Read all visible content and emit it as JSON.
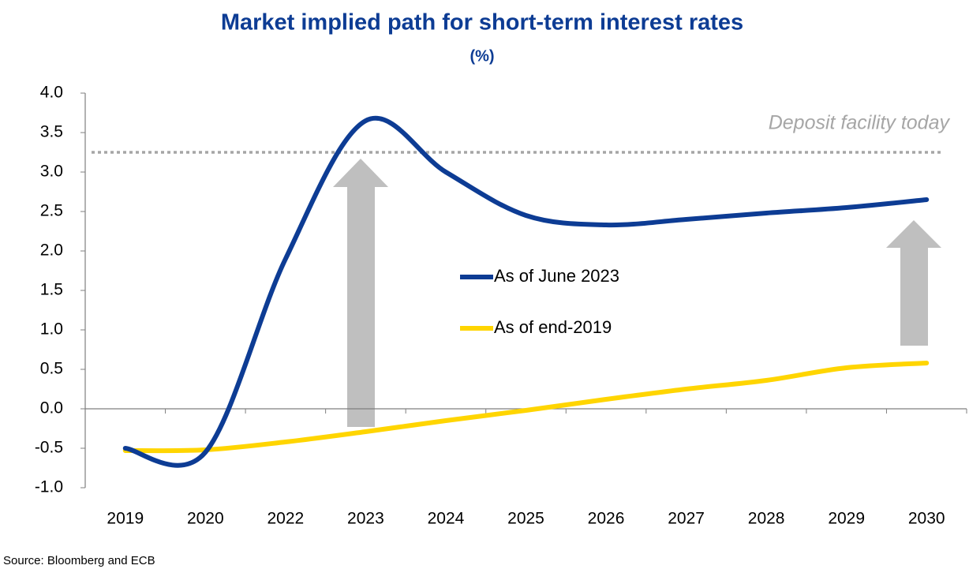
{
  "chart_data": {
    "type": "line",
    "title": "Market implied path for short-term interest rates",
    "subtitle": "(%)",
    "categories": [
      "2019",
      "2020",
      "2022",
      "2023",
      "2024",
      "2025",
      "2026",
      "2027",
      "2028",
      "2029",
      "2030"
    ],
    "series": [
      {
        "name": "As of June 2023",
        "color": "#0d3c94",
        "values": [
          -0.5,
          -0.55,
          1.9,
          3.65,
          3.0,
          2.45,
          2.33,
          2.4,
          2.48,
          2.55,
          2.65
        ]
      },
      {
        "name": "As of end-2019",
        "color": "#ffd500",
        "values": [
          -0.53,
          -0.52,
          -0.42,
          -0.29,
          -0.15,
          -0.02,
          0.12,
          0.25,
          0.36,
          0.52,
          0.58
        ]
      }
    ],
    "reference_line": {
      "value": 3.25,
      "label": "Deposit facility today",
      "color": "#a6a6a6"
    },
    "ylim": [
      -1.0,
      4.0
    ],
    "yticks": [
      {
        "value": -1,
        "label": "-1.0"
      },
      {
        "value": -0.5,
        "label": "-0.5"
      },
      {
        "value": 0,
        "label": "0.0"
      },
      {
        "value": 0.5,
        "label": "0.5"
      },
      {
        "value": 1,
        "label": "1.0"
      },
      {
        "value": 1.5,
        "label": "1.5"
      },
      {
        "value": 2,
        "label": "2.0"
      },
      {
        "value": 2.5,
        "label": "2.5"
      },
      {
        "value": 3,
        "label": "3.0"
      },
      {
        "value": 3.5,
        "label": "3.5"
      },
      {
        "value": 4,
        "label": "4.0"
      }
    ],
    "legend": "center",
    "source": "Source: Bloomberg and ECB"
  }
}
